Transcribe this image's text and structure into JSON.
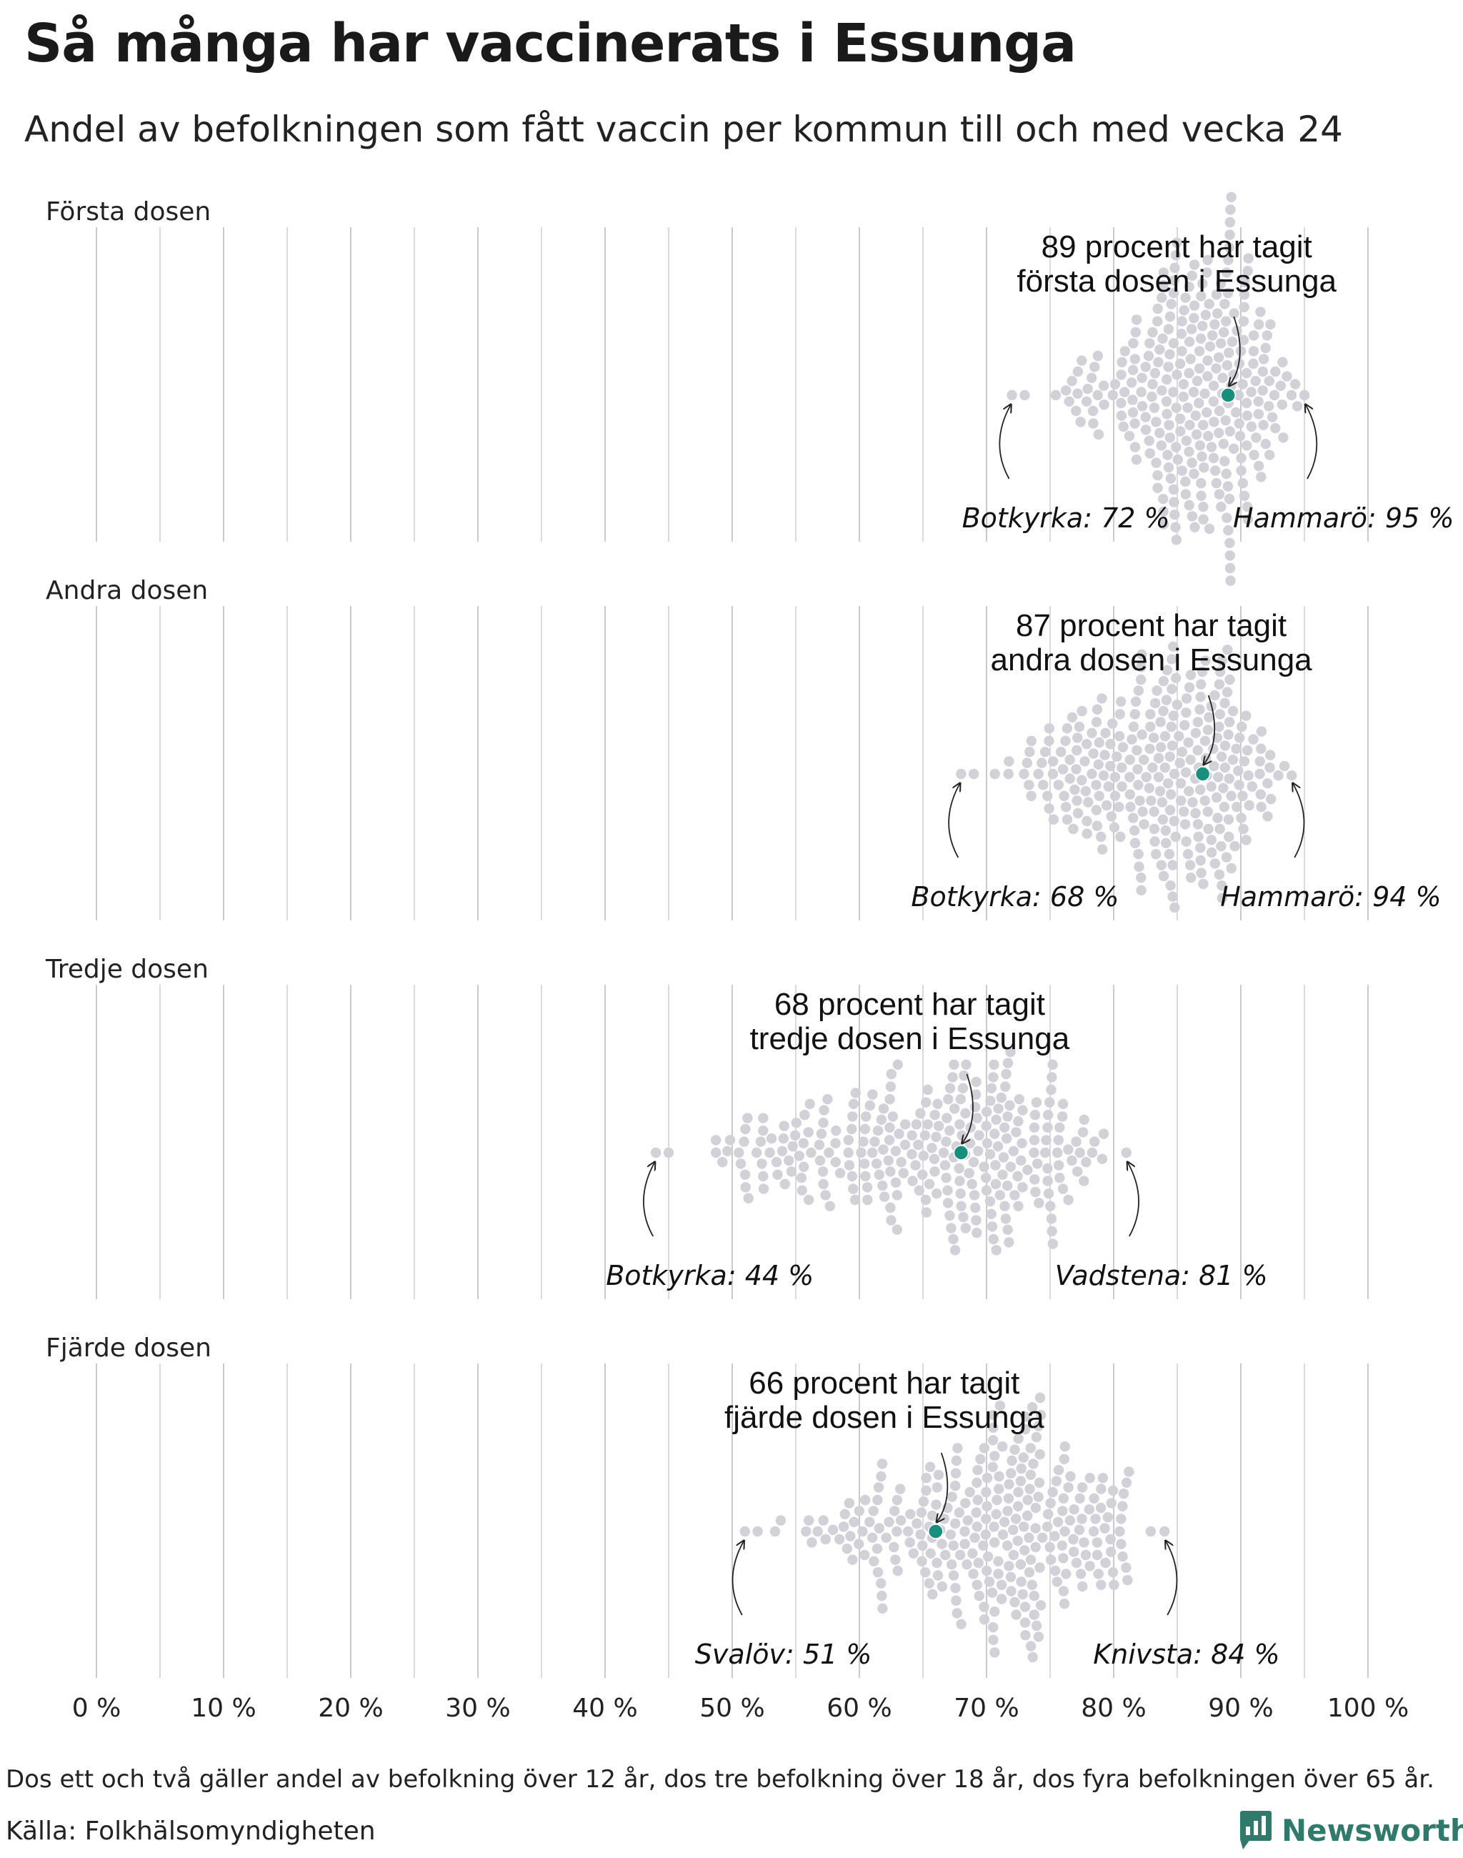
{
  "header": {
    "title": "Så många har vaccinerats i Essunga",
    "subtitle": "Andel av befolkningen som fått vaccin per kommun till och med vecka 24"
  },
  "footer": {
    "note": "Dos ett och två gäller andel av befolkning över 12 år, dos tre befolkning över 18 år, dos fyra befolkningen över 65 år.",
    "source": "Källa: Folkhälsomyndigheten",
    "brand": "Newsworthy",
    "brand_icon": "newsworthy-logo-icon"
  },
  "colors": {
    "highlight": "#16907d",
    "dots": "#d2d1d8",
    "grid": "#bdbdbd",
    "text": "#1a1a1a"
  },
  "chart_data": {
    "type": "scatter",
    "style": "beeswarm",
    "x_unit": "%",
    "xlim": [
      0,
      100
    ],
    "x_ticks": [
      0,
      10,
      20,
      30,
      40,
      50,
      60,
      70,
      80,
      90,
      100
    ],
    "x_tick_labels": [
      "0 %",
      "10 %",
      "20 %",
      "30 %",
      "40 %",
      "50 %",
      "60 %",
      "70 %",
      "80 %",
      "90 %",
      "100 %"
    ],
    "grid": true,
    "panels": [
      {
        "name": "Första dosen",
        "highlight": {
          "value": 89,
          "label_line1": "89 procent har tagit",
          "label_line2": "första dosen i Essunga"
        },
        "min": {
          "name": "Botkyrka",
          "value": 72,
          "label": "Botkyrka: 72 %"
        },
        "max": {
          "name": "Hammarö",
          "value": 95,
          "label": "Hammarö: 95 %"
        },
        "distribution": {
          "mode": 89,
          "min": 72,
          "max": 95
        }
      },
      {
        "name": "Andra dosen",
        "highlight": {
          "value": 87,
          "label_line1": "87 procent har tagit",
          "label_line2": "andra dosen i Essunga"
        },
        "min": {
          "name": "Botkyrka",
          "value": 68,
          "label": "Botkyrka: 68 %"
        },
        "max": {
          "name": "Hammarö",
          "value": 94,
          "label": "Hammarö: 94 %"
        },
        "distribution": {
          "mode": 87,
          "min": 68,
          "max": 94
        }
      },
      {
        "name": "Tredje dosen",
        "highlight": {
          "value": 68,
          "label_line1": "68 procent har tagit",
          "label_line2": "tredje dosen i Essunga"
        },
        "min": {
          "name": "Botkyrka",
          "value": 44,
          "label": "Botkyrka: 44 %"
        },
        "max": {
          "name": "Vadstena",
          "value": 81,
          "label": "Vadstena: 81 %"
        },
        "distribution": {
          "mode": 71,
          "min": 44,
          "max": 81
        }
      },
      {
        "name": "Fjärde dosen",
        "highlight": {
          "value": 66,
          "label_line1": "66 procent har tagit",
          "label_line2": "fjärde dosen i Essunga"
        },
        "min": {
          "name": "Svalöv",
          "value": 51,
          "label": "Svalöv: 51 %"
        },
        "max": {
          "name": "Knivsta",
          "value": 84,
          "label": "Knivsta: 84 %"
        },
        "distribution": {
          "mode": 74,
          "min": 51,
          "max": 84
        }
      }
    ]
  }
}
